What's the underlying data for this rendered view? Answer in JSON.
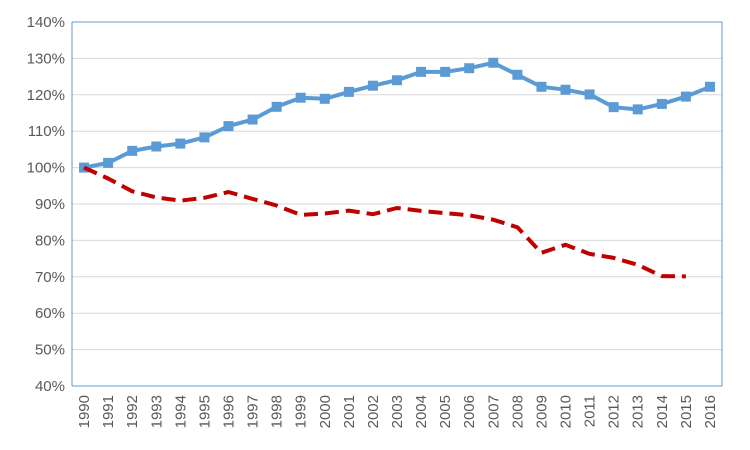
{
  "chart_data": {
    "type": "line",
    "title": "",
    "xlabel": "",
    "ylabel": "",
    "x": [
      1990,
      1991,
      1992,
      1993,
      1994,
      1995,
      1996,
      1997,
      1998,
      1999,
      2000,
      2001,
      2002,
      2003,
      2004,
      2005,
      2006,
      2007,
      2008,
      2009,
      2010,
      2011,
      2012,
      2013,
      2014,
      2015,
      2016
    ],
    "ylim": [
      40,
      140
    ],
    "yticks": [
      40,
      50,
      60,
      70,
      80,
      90,
      100,
      110,
      120,
      130,
      140
    ],
    "ytick_labels": [
      "40%",
      "50%",
      "60%",
      "70%",
      "80%",
      "90%",
      "100%",
      "110%",
      "120%",
      "130%",
      "140%"
    ],
    "xtick_labels": [
      "1990",
      "1991",
      "1992",
      "1993",
      "1994",
      "1995",
      "1996",
      "1997",
      "1998",
      "1999",
      "2000",
      "2001",
      "2002",
      "2003",
      "2004",
      "2005",
      "2006",
      "2007",
      "2008",
      "2009",
      "2010",
      "2011",
      "2012",
      "2013",
      "2014",
      "2015",
      "2016"
    ],
    "grid": true,
    "legend": "none",
    "series": [
      {
        "style": "solid-square-markers",
        "color": "#5B9BD5",
        "values": [
          100,
          101.3,
          104.6,
          105.8,
          106.6,
          108.3,
          111.4,
          113.2,
          116.7,
          119.2,
          118.9,
          120.8,
          122.5,
          124.0,
          126.3,
          126.3,
          127.3,
          128.8,
          125.5,
          122.2,
          121.4,
          120.1,
          116.6,
          116.0,
          117.5,
          119.5,
          122.2
        ]
      },
      {
        "style": "dashed",
        "color": "#C00000",
        "values": [
          100,
          97.0,
          93.5,
          91.8,
          90.9,
          91.7,
          93.3,
          91.4,
          89.6,
          87.0,
          87.4,
          88.2,
          87.2,
          88.9,
          88.1,
          87.5,
          86.9,
          85.7,
          83.6,
          76.6,
          78.8,
          76.3,
          75.2,
          73.3,
          70.2,
          70.1,
          null
        ]
      }
    ]
  },
  "colors": {
    "axis": "#5B9BD5",
    "grid": "#D9D9D9",
    "tick_text": "#595959"
  }
}
